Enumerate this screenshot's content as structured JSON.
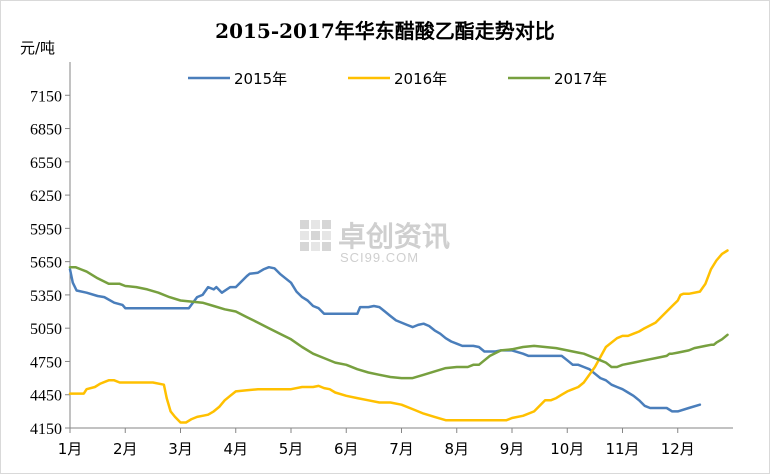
{
  "chart_data": {
    "type": "line",
    "title": "2015-2017年华东醋酸乙酯走势对比",
    "ylabel": "元/吨",
    "ylim": [
      4150,
      7450
    ],
    "yticks": [
      4150,
      4450,
      4750,
      5050,
      5350,
      5650,
      5950,
      6250,
      6550,
      6850,
      7150
    ],
    "xlim": [
      1,
      13
    ],
    "categories": [
      "1月",
      "2月",
      "3月",
      "4月",
      "5月",
      "6月",
      "7月",
      "8月",
      "9月",
      "10月",
      "11月",
      "12月"
    ],
    "legend_position": "top",
    "grid": false,
    "watermark": {
      "text": "卓创资讯",
      "sub": "SCI99.COM"
    },
    "series": [
      {
        "name": "2015年",
        "color": "#4a7ebb",
        "x": [
          1.0,
          1.05,
          1.12,
          1.3,
          1.5,
          1.62,
          1.8,
          1.95,
          2.0,
          2.4,
          2.9,
          3.0,
          3.15,
          3.3,
          3.4,
          3.5,
          3.6,
          3.65,
          3.75,
          3.9,
          4.0,
          4.1,
          4.2,
          4.25,
          4.4,
          4.5,
          4.6,
          4.7,
          4.8,
          4.9,
          5.0,
          5.1,
          5.2,
          5.3,
          5.4,
          5.5,
          5.6,
          5.8,
          6.0,
          6.2,
          6.25,
          6.4,
          6.5,
          6.6,
          6.7,
          6.8,
          6.9,
          7.0,
          7.1,
          7.2,
          7.3,
          7.4,
          7.5,
          7.6,
          7.7,
          7.8,
          7.9,
          8.0,
          8.1,
          8.2,
          8.3,
          8.4,
          8.5,
          8.7,
          8.8,
          9.0,
          9.2,
          9.3,
          9.5,
          9.7,
          9.9,
          10.0,
          10.1,
          10.2,
          10.3,
          10.4,
          10.5,
          10.6,
          10.7,
          10.8,
          10.9,
          11.0,
          11.1,
          11.2,
          11.3,
          11.4,
          11.5,
          11.6,
          11.7,
          11.8,
          11.9,
          12.0,
          12.2,
          12.4
        ],
        "values": [
          5580,
          5460,
          5390,
          5370,
          5340,
          5330,
          5280,
          5260,
          5230,
          5230,
          5230,
          5230,
          5230,
          5330,
          5350,
          5420,
          5400,
          5420,
          5370,
          5420,
          5420,
          5470,
          5520,
          5540,
          5550,
          5580,
          5600,
          5590,
          5540,
          5500,
          5460,
          5380,
          5330,
          5300,
          5250,
          5230,
          5180,
          5180,
          5180,
          5180,
          5240,
          5240,
          5250,
          5240,
          5200,
          5160,
          5120,
          5100,
          5080,
          5060,
          5080,
          5090,
          5070,
          5030,
          5000,
          4960,
          4930,
          4910,
          4890,
          4890,
          4890,
          4880,
          4840,
          4840,
          4850,
          4850,
          4820,
          4800,
          4800,
          4800,
          4800,
          4760,
          4720,
          4720,
          4700,
          4680,
          4640,
          4600,
          4580,
          4540,
          4520,
          4500,
          4470,
          4440,
          4400,
          4350,
          4330,
          4330,
          4330,
          4330,
          4300,
          4300,
          4330,
          4360
        ]
      },
      {
        "name": "2016年",
        "color": "#ffc000",
        "x": [
          1.0,
          1.25,
          1.3,
          1.45,
          1.55,
          1.7,
          1.8,
          1.9,
          2.0,
          2.2,
          2.5,
          2.7,
          2.75,
          2.82,
          2.9,
          3.0,
          3.1,
          3.2,
          3.3,
          3.4,
          3.5,
          3.6,
          3.7,
          3.8,
          3.9,
          4.0,
          4.2,
          4.4,
          4.6,
          4.8,
          5.0,
          5.2,
          5.4,
          5.5,
          5.6,
          5.7,
          5.8,
          6.0,
          6.2,
          6.4,
          6.6,
          6.8,
          7.0,
          7.2,
          7.4,
          7.6,
          7.8,
          8.0,
          8.2,
          8.4,
          8.6,
          8.8,
          8.9,
          9.0,
          9.2,
          9.4,
          9.6,
          9.7,
          9.8,
          9.9,
          10.0,
          10.1,
          10.15,
          10.2,
          10.3,
          10.5,
          10.7,
          10.9,
          11.0,
          11.1,
          11.2,
          11.3,
          11.4,
          11.6,
          11.8,
          11.9,
          12.0,
          12.05,
          12.1,
          12.2,
          12.4,
          12.5,
          12.6,
          12.7,
          12.8,
          12.9
        ],
        "values": [
          4460,
          4460,
          4500,
          4520,
          4550,
          4580,
          4580,
          4560,
          4560,
          4560,
          4560,
          4540,
          4420,
          4300,
          4250,
          4200,
          4200,
          4230,
          4250,
          4260,
          4270,
          4300,
          4340,
          4400,
          4440,
          4480,
          4490,
          4500,
          4500,
          4500,
          4500,
          4520,
          4520,
          4530,
          4510,
          4500,
          4470,
          4440,
          4420,
          4400,
          4380,
          4380,
          4360,
          4320,
          4280,
          4250,
          4220,
          4220,
          4220,
          4220,
          4220,
          4220,
          4220,
          4240,
          4260,
          4300,
          4400,
          4400,
          4420,
          4450,
          4480,
          4500,
          4510,
          4520,
          4560,
          4700,
          4880,
          4960,
          4980,
          4980,
          5000,
          5020,
          5050,
          5100,
          5200,
          5250,
          5300,
          5350,
          5360,
          5360,
          5380,
          5450,
          5580,
          5660,
          5720,
          5750
        ]
      },
      {
        "name": "2017年",
        "color": "#77a03f",
        "x": [
          1.0,
          1.1,
          1.2,
          1.3,
          1.5,
          1.7,
          1.9,
          2.0,
          2.2,
          2.4,
          2.6,
          2.8,
          3.0,
          3.2,
          3.4,
          3.6,
          3.8,
          4.0,
          4.2,
          4.4,
          4.6,
          4.8,
          5.0,
          5.2,
          5.4,
          5.6,
          5.8,
          6.0,
          6.2,
          6.4,
          6.6,
          6.8,
          7.0,
          7.2,
          7.4,
          7.6,
          7.8,
          8.0,
          8.1,
          8.2,
          8.3,
          8.4,
          8.5,
          8.6,
          8.8,
          9.0,
          9.2,
          9.4,
          9.6,
          9.8,
          10.0,
          10.2,
          10.3,
          10.4,
          10.5,
          10.6,
          10.7,
          10.75,
          10.8,
          10.85,
          10.9,
          11.0,
          11.2,
          11.4,
          11.6,
          11.8,
          11.85,
          11.9,
          12.0,
          12.1,
          12.2,
          12.3,
          12.4,
          12.5,
          12.6,
          12.65,
          12.7,
          12.8,
          12.9
        ],
        "values": [
          5600,
          5600,
          5580,
          5560,
          5500,
          5450,
          5450,
          5430,
          5420,
          5400,
          5370,
          5330,
          5300,
          5290,
          5280,
          5250,
          5220,
          5200,
          5150,
          5100,
          5050,
          5000,
          4950,
          4880,
          4820,
          4780,
          4740,
          4720,
          4680,
          4650,
          4630,
          4610,
          4600,
          4600,
          4630,
          4660,
          4690,
          4700,
          4700,
          4700,
          4720,
          4720,
          4760,
          4800,
          4850,
          4860,
          4880,
          4890,
          4880,
          4870,
          4850,
          4830,
          4820,
          4800,
          4780,
          4760,
          4740,
          4720,
          4700,
          4700,
          4700,
          4720,
          4740,
          4760,
          4780,
          4800,
          4820,
          4820,
          4830,
          4840,
          4850,
          4870,
          4880,
          4890,
          4900,
          4900,
          4920,
          4950,
          4990
        ]
      }
    ]
  }
}
